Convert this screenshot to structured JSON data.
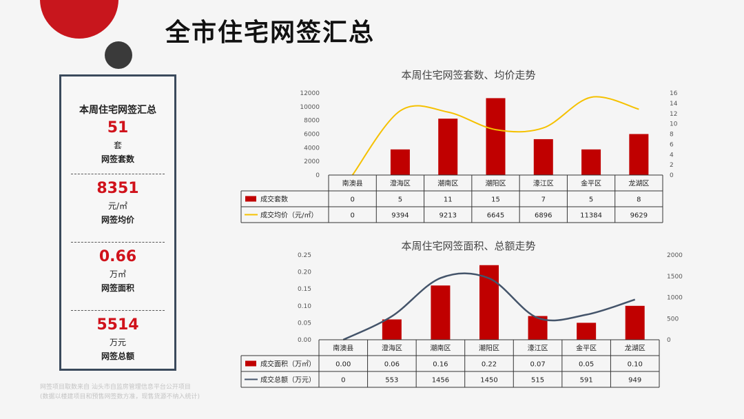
{
  "page": {
    "title": "全市住宅网签汇总"
  },
  "summary": {
    "heading": "本周住宅网签汇总",
    "metrics": [
      {
        "value": "51",
        "unit": "套",
        "label": "网签套数"
      },
      {
        "value": "8351",
        "unit": "元/㎡",
        "label": "网签均价"
      },
      {
        "value": "0.66",
        "unit": "万㎡",
        "label": "网签面积"
      },
      {
        "value": "5514",
        "unit": "万元",
        "label": "网签总额"
      }
    ]
  },
  "footnote": {
    "line1": "网签项目取数来自 汕头市自监房管理信息平台公开项目",
    "line2": "(数据以楼建项目和预售网签数方准，现售货源不纳入统计)"
  },
  "chart_data": [
    {
      "type": "bar",
      "title": "本周住宅网签套数、均价走势",
      "categories": [
        "南澳县",
        "澄海区",
        "潮南区",
        "潮阳区",
        "濠江区",
        "金平区",
        "龙湖区"
      ],
      "ylim": [
        0,
        12000
      ],
      "yticks": [
        "12000",
        "10000",
        "8000",
        "6000",
        "4000",
        "2000",
        "0"
      ],
      "y2lim": [
        0,
        16
      ],
      "y2ticks": [
        "16",
        "14",
        "12",
        "10",
        "8",
        "6",
        "4",
        "2",
        "0"
      ],
      "bar_axis": "y2",
      "line_axis": "y",
      "series": [
        {
          "name": "成交套数",
          "kind": "bar",
          "color": "#c00000",
          "values": [
            0,
            5,
            11,
            15,
            7,
            5,
            8
          ]
        },
        {
          "name": "成交均价（元/㎡）",
          "kind": "line",
          "color": "#f5c100",
          "values": [
            0,
            9394,
            9213,
            6645,
            6896,
            11384,
            9629
          ]
        }
      ]
    },
    {
      "type": "bar",
      "title": "本周住宅网签面积、总额走势",
      "categories": [
        "南澳县",
        "澄海区",
        "潮南区",
        "潮阳区",
        "濠江区",
        "金平区",
        "龙湖区"
      ],
      "ylim": [
        0,
        0.25
      ],
      "yticks": [
        "0.25",
        "0.20",
        "0.15",
        "0.10",
        "0.05",
        "0.00"
      ],
      "y2lim": [
        0,
        2000
      ],
      "y2ticks": [
        "2000",
        "1500",
        "1000",
        "500",
        "0"
      ],
      "bar_axis": "y",
      "line_axis": "y2",
      "series": [
        {
          "name": "成交面积（万㎡）",
          "kind": "bar",
          "color": "#c00000",
          "values": [
            0.0,
            0.06,
            0.16,
            0.22,
            0.07,
            0.05,
            0.1
          ],
          "labels": [
            "0.00",
            "0.06",
            "0.16",
            "0.22",
            "0.07",
            "0.05",
            "0.10"
          ]
        },
        {
          "name": "成交总额（万元）",
          "kind": "line",
          "color": "#44546a",
          "values": [
            0,
            553,
            1456,
            1450,
            515,
            591,
            949
          ]
        }
      ]
    }
  ]
}
